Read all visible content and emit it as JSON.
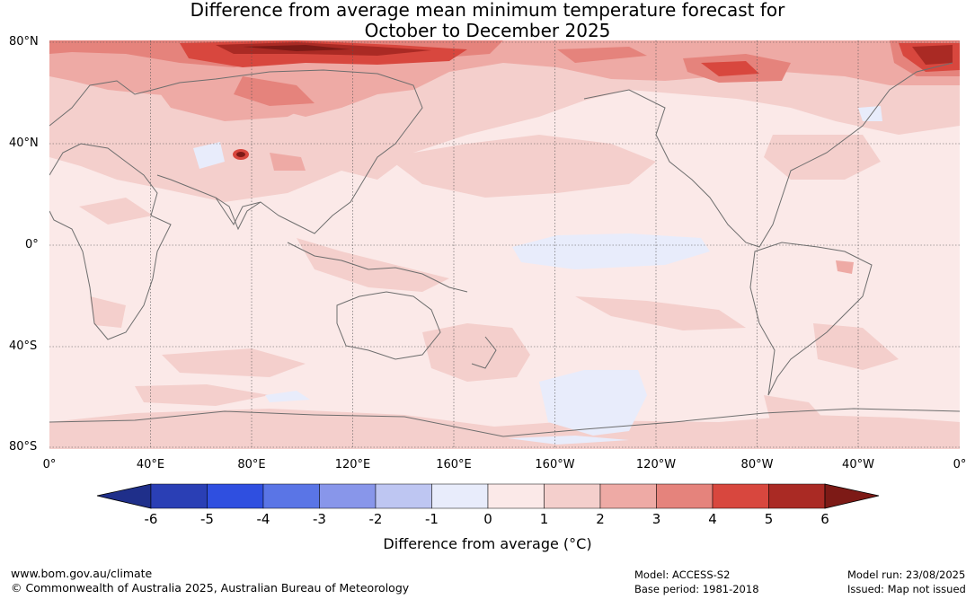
{
  "title": {
    "line1": "Difference from average mean minimum temperature forecast for",
    "line2": "October to December 2025"
  },
  "axes": {
    "lat_labels": [
      "80°N",
      "40°N",
      "0°",
      "40°S",
      "80°S"
    ],
    "lon_labels": [
      "0°",
      "40°E",
      "80°E",
      "120°E",
      "160°E",
      "160°W",
      "120°W",
      "80°W",
      "40°W",
      "0°"
    ]
  },
  "colorbar": {
    "title": "Difference from average (°C)",
    "ticks": [
      "-6",
      "-5",
      "-4",
      "-3",
      "-2",
      "-1",
      "0",
      "1",
      "2",
      "3",
      "4",
      "5",
      "6"
    ],
    "colors": [
      "#1f2f8a",
      "#2a3fb5",
      "#2f4fe0",
      "#5a75e6",
      "#8896ea",
      "#bec6f2",
      "#e8ecfb",
      "#fbe9e8",
      "#f4cfcc",
      "#eeaaa5",
      "#e5837c",
      "#d8473e",
      "#aa2a24",
      "#7d1a16"
    ]
  },
  "footer": {
    "website": "www.bom.gov.au/climate",
    "copyright": "© Commonwealth of Australia 2025, Australian Bureau of Meteorology",
    "model": "Model: ACCESS-S2",
    "base_period": "Base period: 1981-2018",
    "model_run": "Model run: 23/08/2025",
    "issued": "Issued: Map not issued"
  }
}
